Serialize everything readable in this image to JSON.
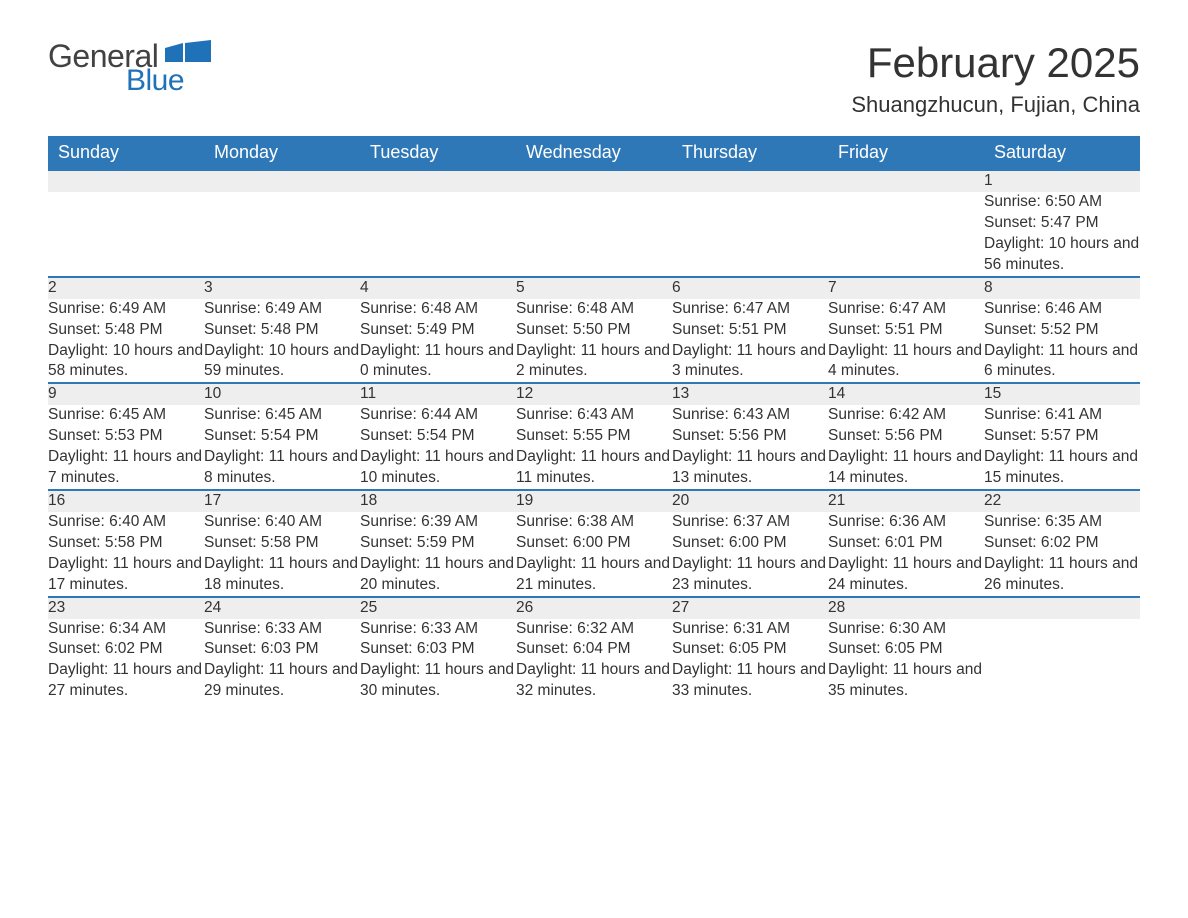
{
  "logo": {
    "word1": "General",
    "word2": "Blue"
  },
  "title": "February 2025",
  "location": "Shuangzhucun, Fujian, China",
  "colors": {
    "header_bg": "#2f78b7",
    "header_text": "#ffffff",
    "daynum_bg": "#eeeeee",
    "rule": "#2f78b7",
    "logo_gray": "#424242",
    "logo_blue": "#1f72b8",
    "body_text": "#333333"
  },
  "day_headers": [
    "Sunday",
    "Monday",
    "Tuesday",
    "Wednesday",
    "Thursday",
    "Friday",
    "Saturday"
  ],
  "weeks": [
    [
      null,
      null,
      null,
      null,
      null,
      null,
      {
        "n": "1",
        "sr": "Sunrise: 6:50 AM",
        "ss": "Sunset: 5:47 PM",
        "dl": "Daylight: 10 hours and 56 minutes."
      }
    ],
    [
      {
        "n": "2",
        "sr": "Sunrise: 6:49 AM",
        "ss": "Sunset: 5:48 PM",
        "dl": "Daylight: 10 hours and 58 minutes."
      },
      {
        "n": "3",
        "sr": "Sunrise: 6:49 AM",
        "ss": "Sunset: 5:48 PM",
        "dl": "Daylight: 10 hours and 59 minutes."
      },
      {
        "n": "4",
        "sr": "Sunrise: 6:48 AM",
        "ss": "Sunset: 5:49 PM",
        "dl": "Daylight: 11 hours and 0 minutes."
      },
      {
        "n": "5",
        "sr": "Sunrise: 6:48 AM",
        "ss": "Sunset: 5:50 PM",
        "dl": "Daylight: 11 hours and 2 minutes."
      },
      {
        "n": "6",
        "sr": "Sunrise: 6:47 AM",
        "ss": "Sunset: 5:51 PM",
        "dl": "Daylight: 11 hours and 3 minutes."
      },
      {
        "n": "7",
        "sr": "Sunrise: 6:47 AM",
        "ss": "Sunset: 5:51 PM",
        "dl": "Daylight: 11 hours and 4 minutes."
      },
      {
        "n": "8",
        "sr": "Sunrise: 6:46 AM",
        "ss": "Sunset: 5:52 PM",
        "dl": "Daylight: 11 hours and 6 minutes."
      }
    ],
    [
      {
        "n": "9",
        "sr": "Sunrise: 6:45 AM",
        "ss": "Sunset: 5:53 PM",
        "dl": "Daylight: 11 hours and 7 minutes."
      },
      {
        "n": "10",
        "sr": "Sunrise: 6:45 AM",
        "ss": "Sunset: 5:54 PM",
        "dl": "Daylight: 11 hours and 8 minutes."
      },
      {
        "n": "11",
        "sr": "Sunrise: 6:44 AM",
        "ss": "Sunset: 5:54 PM",
        "dl": "Daylight: 11 hours and 10 minutes."
      },
      {
        "n": "12",
        "sr": "Sunrise: 6:43 AM",
        "ss": "Sunset: 5:55 PM",
        "dl": "Daylight: 11 hours and 11 minutes."
      },
      {
        "n": "13",
        "sr": "Sunrise: 6:43 AM",
        "ss": "Sunset: 5:56 PM",
        "dl": "Daylight: 11 hours and 13 minutes."
      },
      {
        "n": "14",
        "sr": "Sunrise: 6:42 AM",
        "ss": "Sunset: 5:56 PM",
        "dl": "Daylight: 11 hours and 14 minutes."
      },
      {
        "n": "15",
        "sr": "Sunrise: 6:41 AM",
        "ss": "Sunset: 5:57 PM",
        "dl": "Daylight: 11 hours and 15 minutes."
      }
    ],
    [
      {
        "n": "16",
        "sr": "Sunrise: 6:40 AM",
        "ss": "Sunset: 5:58 PM",
        "dl": "Daylight: 11 hours and 17 minutes."
      },
      {
        "n": "17",
        "sr": "Sunrise: 6:40 AM",
        "ss": "Sunset: 5:58 PM",
        "dl": "Daylight: 11 hours and 18 minutes."
      },
      {
        "n": "18",
        "sr": "Sunrise: 6:39 AM",
        "ss": "Sunset: 5:59 PM",
        "dl": "Daylight: 11 hours and 20 minutes."
      },
      {
        "n": "19",
        "sr": "Sunrise: 6:38 AM",
        "ss": "Sunset: 6:00 PM",
        "dl": "Daylight: 11 hours and 21 minutes."
      },
      {
        "n": "20",
        "sr": "Sunrise: 6:37 AM",
        "ss": "Sunset: 6:00 PM",
        "dl": "Daylight: 11 hours and 23 minutes."
      },
      {
        "n": "21",
        "sr": "Sunrise: 6:36 AM",
        "ss": "Sunset: 6:01 PM",
        "dl": "Daylight: 11 hours and 24 minutes."
      },
      {
        "n": "22",
        "sr": "Sunrise: 6:35 AM",
        "ss": "Sunset: 6:02 PM",
        "dl": "Daylight: 11 hours and 26 minutes."
      }
    ],
    [
      {
        "n": "23",
        "sr": "Sunrise: 6:34 AM",
        "ss": "Sunset: 6:02 PM",
        "dl": "Daylight: 11 hours and 27 minutes."
      },
      {
        "n": "24",
        "sr": "Sunrise: 6:33 AM",
        "ss": "Sunset: 6:03 PM",
        "dl": "Daylight: 11 hours and 29 minutes."
      },
      {
        "n": "25",
        "sr": "Sunrise: 6:33 AM",
        "ss": "Sunset: 6:03 PM",
        "dl": "Daylight: 11 hours and 30 minutes."
      },
      {
        "n": "26",
        "sr": "Sunrise: 6:32 AM",
        "ss": "Sunset: 6:04 PM",
        "dl": "Daylight: 11 hours and 32 minutes."
      },
      {
        "n": "27",
        "sr": "Sunrise: 6:31 AM",
        "ss": "Sunset: 6:05 PM",
        "dl": "Daylight: 11 hours and 33 minutes."
      },
      {
        "n": "28",
        "sr": "Sunrise: 6:30 AM",
        "ss": "Sunset: 6:05 PM",
        "dl": "Daylight: 11 hours and 35 minutes."
      },
      null
    ]
  ]
}
